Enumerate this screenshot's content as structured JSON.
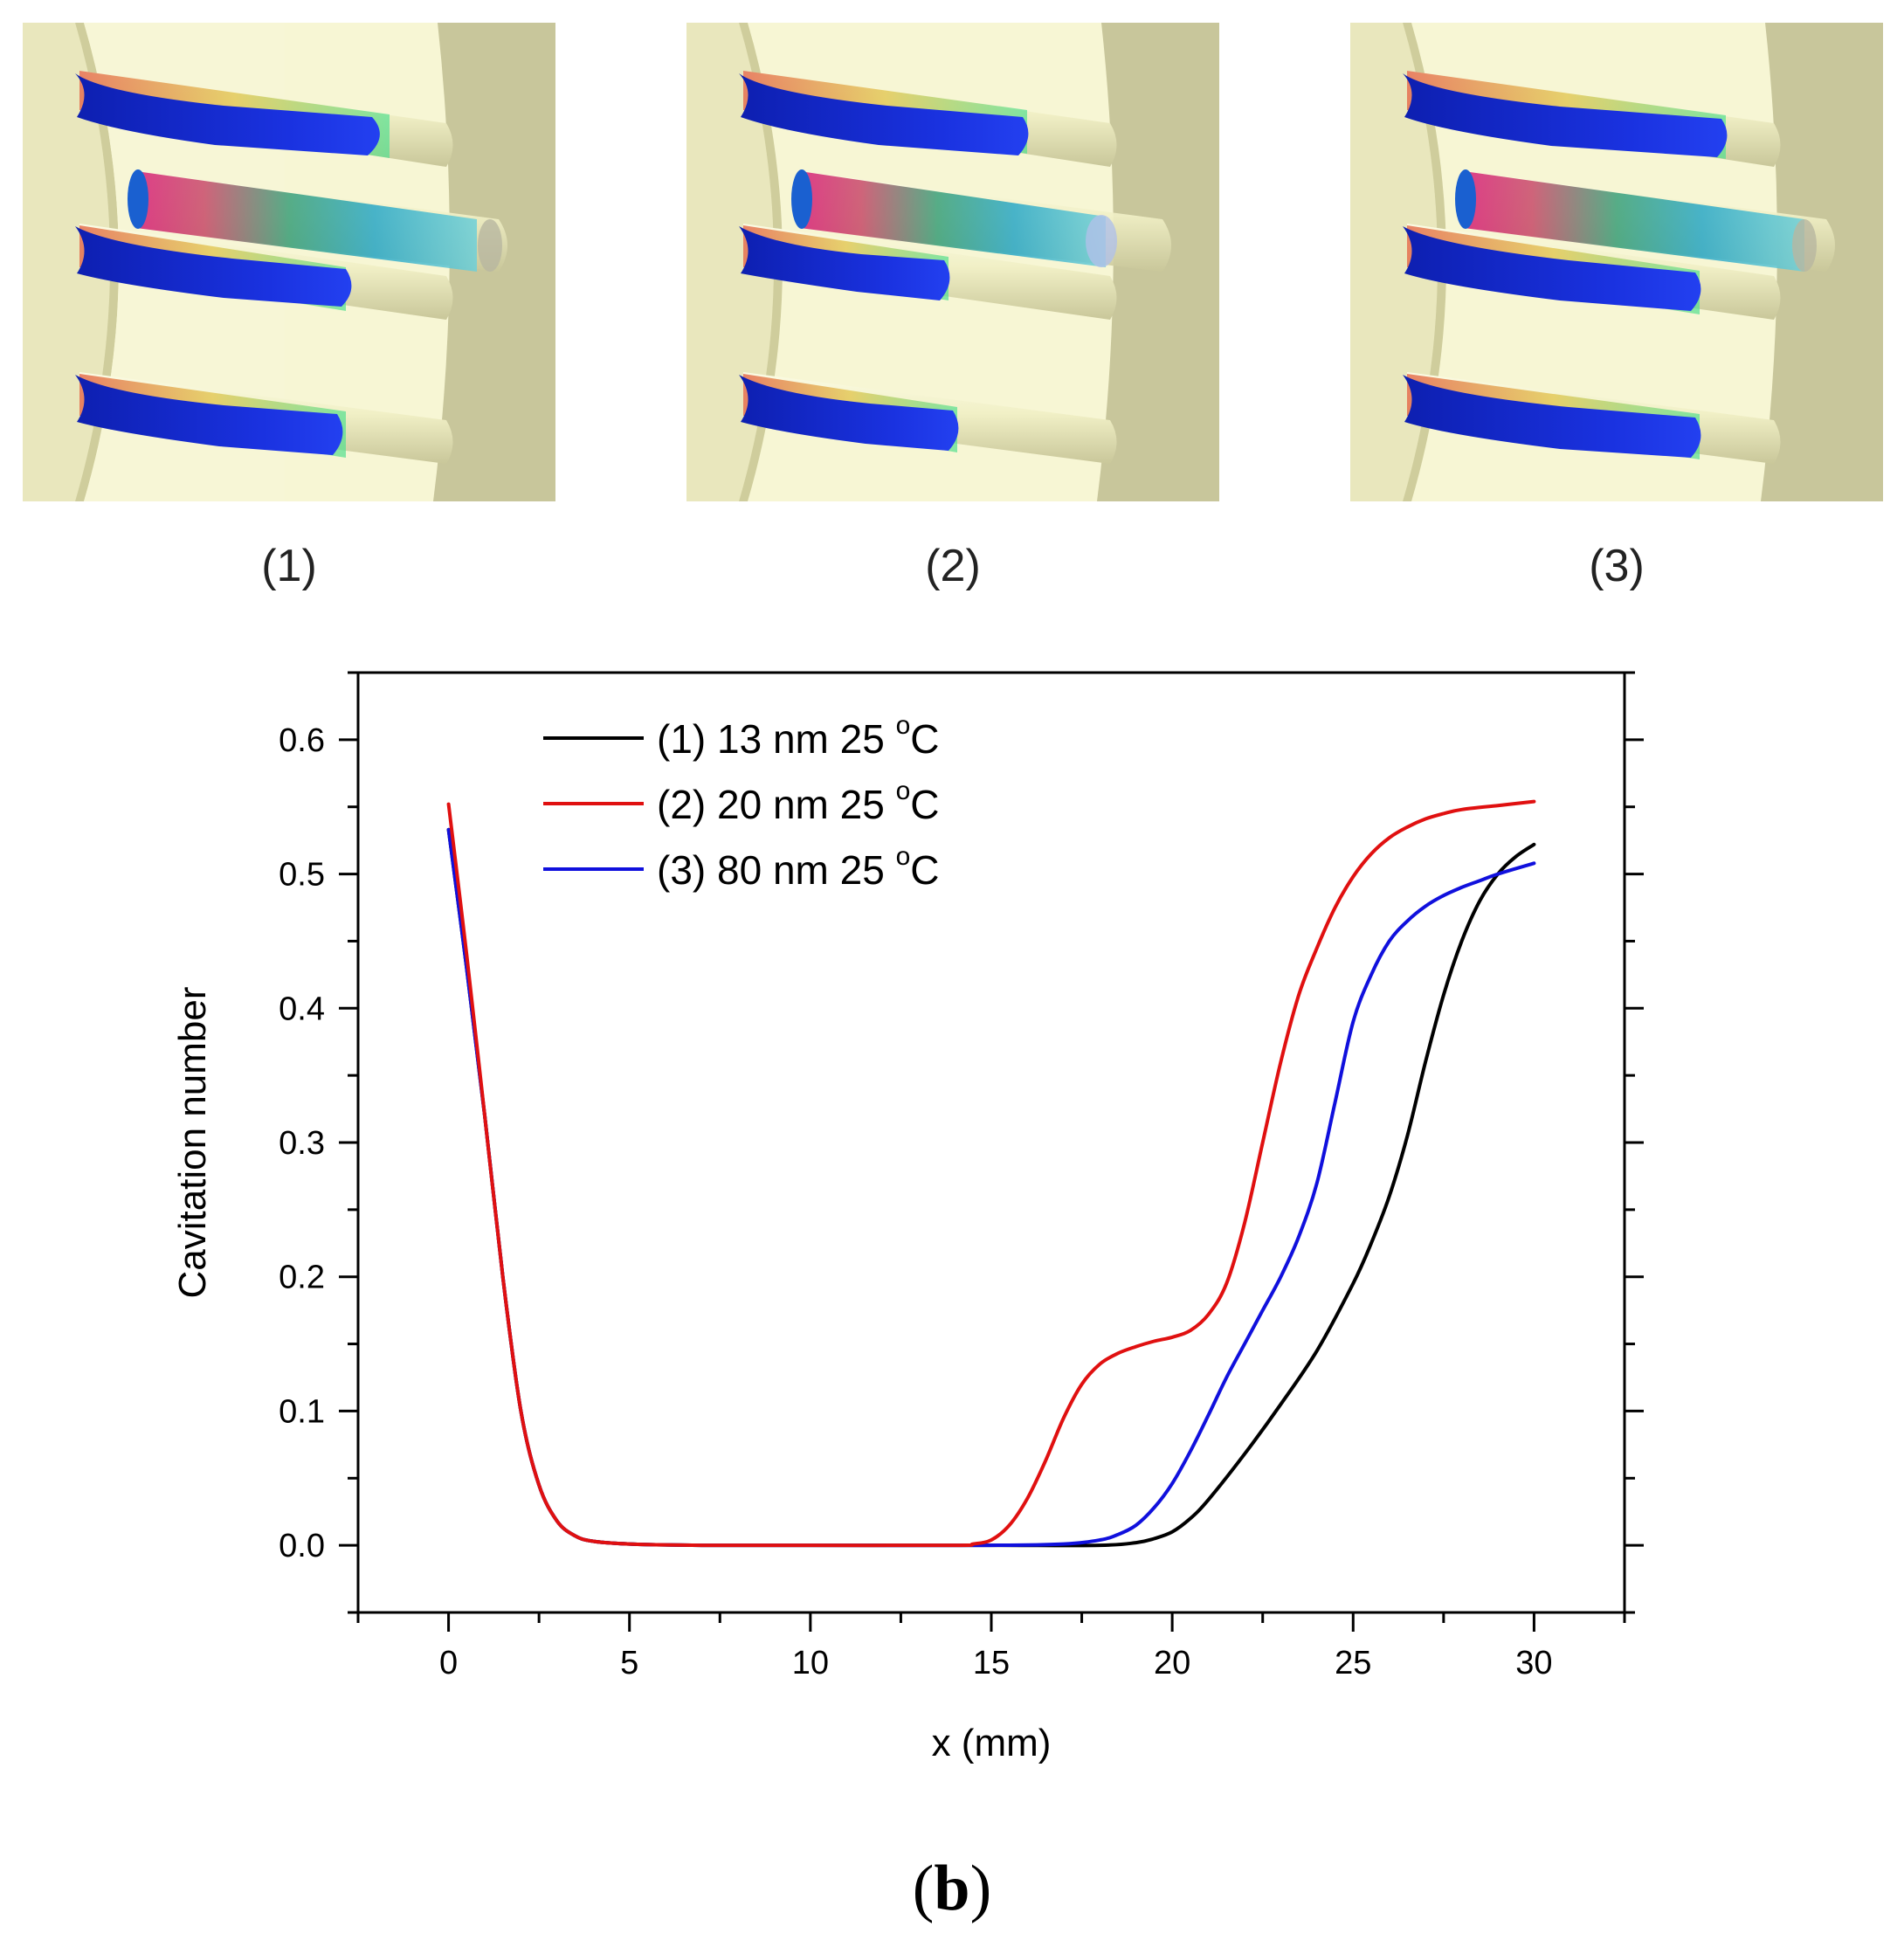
{
  "panels": [
    {
      "label": "(1)"
    },
    {
      "label": "(2)"
    },
    {
      "label": "(3)"
    }
  ],
  "figure_label": {
    "open": "(",
    "letter": "b",
    "close": ")"
  },
  "chart_data": {
    "type": "line",
    "xlabel": "x (mm)",
    "ylabel": "Cavitation number",
    "xlim": [
      -2.5,
      32.5
    ],
    "ylim": [
      -0.05,
      0.65
    ],
    "xticks": [
      0,
      5,
      10,
      15,
      20,
      25,
      30
    ],
    "yticks": [
      0.0,
      0.1,
      0.2,
      0.3,
      0.4,
      0.5,
      0.6
    ],
    "xtick_labels": [
      "0",
      "5",
      "10",
      "15",
      "20",
      "25",
      "30"
    ],
    "ytick_labels": [
      "0.0",
      "0.1",
      "0.2",
      "0.3",
      "0.4",
      "0.5",
      "0.6"
    ],
    "legend_position": "top-left",
    "series": [
      {
        "name": "(1) 13 nm  25 °C",
        "legend_main": "(1) 13 nm  25 ",
        "legend_sup": "o",
        "legend_unit": "C",
        "color": "#000000",
        "x": [
          0,
          0.5,
          1,
          1.5,
          2,
          2.5,
          3,
          3.5,
          4,
          5,
          7,
          10,
          15,
          18,
          19,
          19.5,
          20,
          20.5,
          21,
          22,
          23,
          24,
          25,
          25.5,
          26,
          26.5,
          27,
          27.5,
          28,
          28.5,
          29,
          29.5,
          30
        ],
        "y": [
          0.533,
          0.43,
          0.32,
          0.2,
          0.1,
          0.045,
          0.018,
          0.007,
          0.003,
          0.001,
          0.0,
          0.0,
          0.0,
          0.0,
          0.002,
          0.005,
          0.01,
          0.02,
          0.034,
          0.068,
          0.105,
          0.145,
          0.195,
          0.225,
          0.26,
          0.305,
          0.36,
          0.41,
          0.45,
          0.48,
          0.5,
          0.513,
          0.522
        ]
      },
      {
        "name": "(2) 20 nm  25 °C",
        "legend_main": "(2) 20 nm  25 ",
        "legend_sup": "o",
        "legend_unit": "C",
        "color": "#e01010",
        "x": [
          0,
          0.5,
          1,
          1.5,
          2,
          2.5,
          3,
          3.5,
          4,
          5,
          7,
          10,
          14,
          14.5,
          15,
          15.5,
          16,
          16.5,
          17,
          17.5,
          18,
          18.5,
          19,
          19.5,
          20,
          20.5,
          21,
          21.5,
          22,
          22.5,
          23,
          23.5,
          24,
          24.5,
          25,
          25.5,
          26,
          26.5,
          27,
          27.5,
          28,
          29,
          30
        ],
        "y": [
          0.552,
          0.44,
          0.32,
          0.2,
          0.1,
          0.045,
          0.018,
          0.007,
          0.003,
          0.001,
          0.0,
          0.0,
          0.0,
          0.001,
          0.004,
          0.015,
          0.035,
          0.063,
          0.095,
          0.12,
          0.135,
          0.143,
          0.148,
          0.152,
          0.155,
          0.16,
          0.172,
          0.195,
          0.24,
          0.3,
          0.36,
          0.41,
          0.445,
          0.475,
          0.498,
          0.515,
          0.527,
          0.535,
          0.541,
          0.545,
          0.548,
          0.551,
          0.554
        ]
      },
      {
        "name": "(3) 80 nm  25 °C",
        "legend_main": "(3) 80 nm  25 ",
        "legend_sup": "o",
        "legend_unit": "C",
        "color": "#1010dd",
        "x": [
          0,
          0.5,
          1,
          1.5,
          2,
          2.5,
          3,
          3.5,
          4,
          5,
          7,
          10,
          15,
          17,
          18,
          18.5,
          19,
          19.5,
          20,
          20.5,
          21,
          21.5,
          22,
          22.5,
          23,
          23.5,
          24,
          24.5,
          25,
          25.5,
          26,
          26.5,
          27,
          27.5,
          28,
          28.5,
          29,
          30
        ],
        "y": [
          0.533,
          0.43,
          0.32,
          0.2,
          0.1,
          0.045,
          0.018,
          0.007,
          0.003,
          0.001,
          0.0,
          0.0,
          0.0,
          0.001,
          0.004,
          0.008,
          0.015,
          0.028,
          0.046,
          0.07,
          0.097,
          0.125,
          0.15,
          0.175,
          0.2,
          0.23,
          0.27,
          0.33,
          0.39,
          0.425,
          0.45,
          0.465,
          0.476,
          0.484,
          0.49,
          0.495,
          0.5,
          0.508
        ]
      }
    ]
  }
}
